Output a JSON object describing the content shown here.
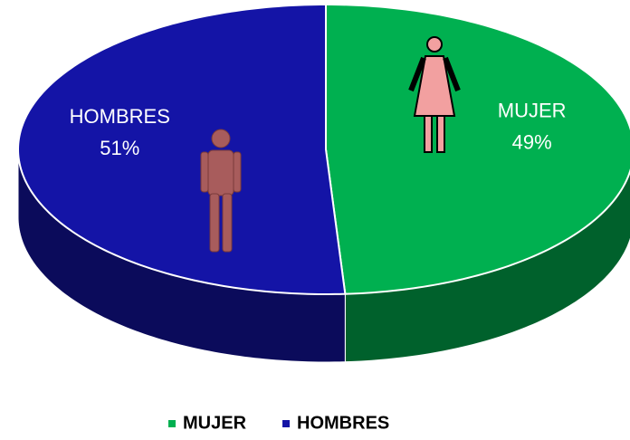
{
  "chart_data": {
    "type": "pie3d",
    "categories": [
      "MUJER",
      "HOMBRES"
    ],
    "values": [
      49,
      51
    ],
    "value_labels": [
      "49%",
      "51%"
    ],
    "colors": [
      "#00b050",
      "#1414a6"
    ],
    "legend": "bottom"
  }
}
